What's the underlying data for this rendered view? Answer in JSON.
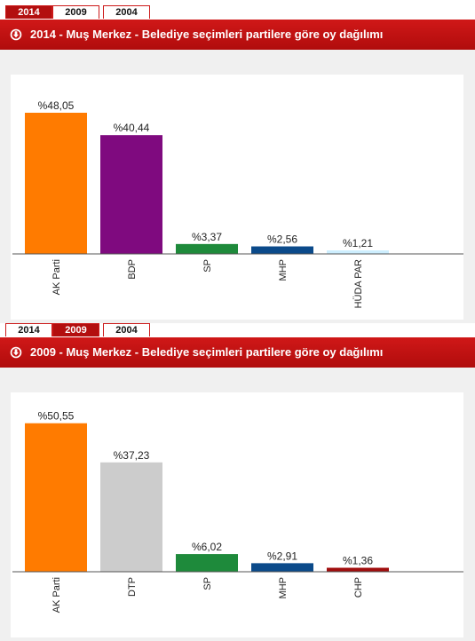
{
  "tabs": [
    "2014",
    "2009",
    "2004"
  ],
  "colors": {
    "brand": "#c41111",
    "axis": "#555555"
  },
  "panels": [
    {
      "active_tab": "2014",
      "title": "2014 - Muş Merkez - Belediye seçimleri partilere göre oy dağılımı",
      "icon": "download-arrow-icon"
    },
    {
      "active_tab": "2009",
      "title": "2009 - Muş Merkez - Belediye seçimleri partilere göre oy dağılımı",
      "icon": "download-arrow-icon"
    }
  ],
  "chart_data": [
    {
      "type": "bar",
      "title": "2014 - Muş Merkez - Belediye seçimleri partilere göre oy dağılımı",
      "categories": [
        "AK Parti",
        "BDP",
        "SP",
        "MHP",
        "HÜDA PAR"
      ],
      "values": [
        48.05,
        40.44,
        3.37,
        2.56,
        1.21
      ],
      "labels": [
        "%48,05",
        "%40,44",
        "%3,37",
        "%2,56",
        "%1,21"
      ],
      "colors": [
        "#ff7b00",
        "#7f0a7f",
        "#1e8a3b",
        "#0b4a8a",
        "#cdeefe"
      ],
      "ylim": [
        0,
        55
      ],
      "grid": false
    },
    {
      "type": "bar",
      "title": "2009 - Muş Merkez - Belediye seçimleri partilere göre oy dağılımı",
      "categories": [
        "AK Parti",
        "DTP",
        "SP",
        "MHP",
        "CHP"
      ],
      "values": [
        50.55,
        37.23,
        6.02,
        2.91,
        1.36
      ],
      "labels": [
        "%50,55",
        "%37,23",
        "%6,02",
        "%2,91",
        "%1,36"
      ],
      "colors": [
        "#ff7b00",
        "#cccccc",
        "#1e8a3b",
        "#0b4a8a",
        "#a00e0e"
      ],
      "ylim": [
        0,
        55
      ],
      "grid": false
    }
  ]
}
